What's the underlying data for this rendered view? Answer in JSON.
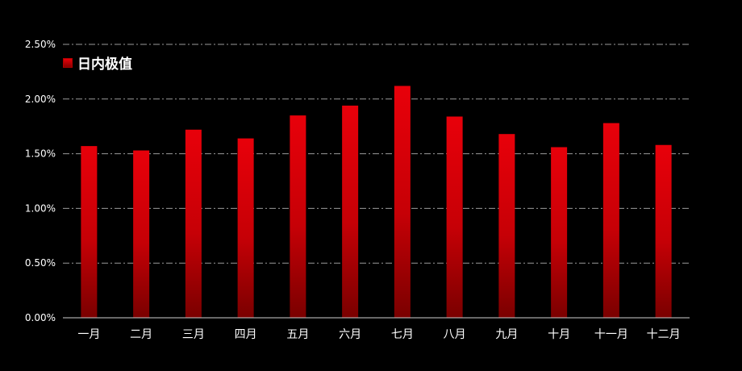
{
  "chart_data": {
    "type": "bar",
    "categories": [
      "一月",
      "二月",
      "三月",
      "四月",
      "五月",
      "六月",
      "七月",
      "八月",
      "九月",
      "十月",
      "十一月",
      "十二月"
    ],
    "series": [
      {
        "name": "日内极值",
        "values": [
          1.57,
          1.53,
          1.72,
          1.64,
          1.85,
          1.94,
          2.12,
          1.84,
          1.68,
          1.56,
          1.78,
          1.58
        ],
        "color_top": "#e8000a",
        "color_bottom": "#7a0000"
      }
    ],
    "y_ticks": [
      "0.00%",
      "0.50%",
      "1.00%",
      "1.50%",
      "2.00%",
      "2.50%"
    ],
    "ylim": [
      0,
      2.5
    ],
    "grid": true,
    "grid_style": "dash-dot",
    "legend_position": "top-left",
    "background_color": "#000000",
    "text_color": "#ffffff"
  }
}
